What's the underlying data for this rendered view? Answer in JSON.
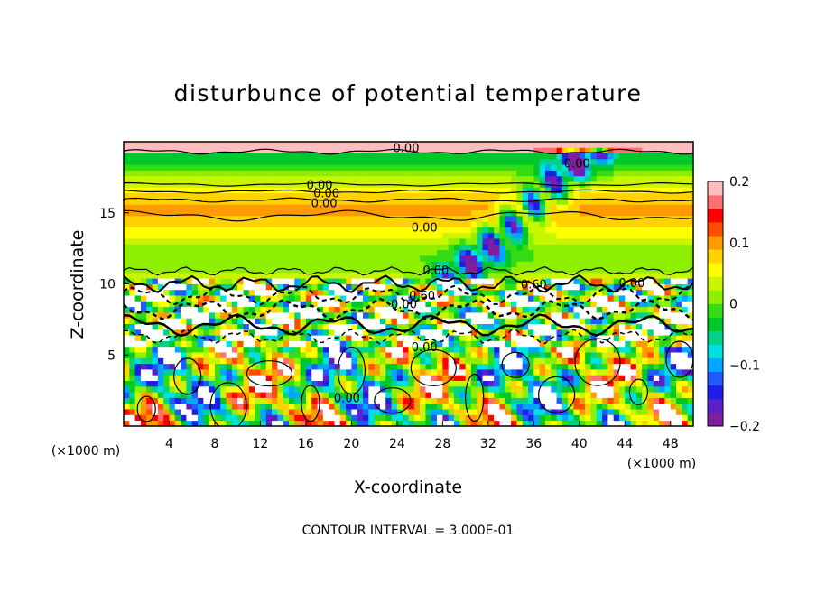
{
  "chart_data": {
    "type": "heatmap",
    "title": "disturbunce of potential temperature",
    "xlabel": "X-coordinate",
    "ylabel": "Z-coordinate",
    "x_unit_left": "(×1000 m)",
    "x_unit_right": "(×1000 m)",
    "x_range": [
      0,
      50
    ],
    "y_range": [
      0,
      20
    ],
    "x_ticks": [
      4,
      8,
      12,
      16,
      20,
      24,
      28,
      32,
      36,
      40,
      44,
      48
    ],
    "y_ticks": [
      5,
      10,
      15
    ],
    "footer": "CONTOUR INTERVAL = 3.000E-01",
    "colorbar": {
      "range": [
        -0.2,
        0.2
      ],
      "tick_values": [
        0.2,
        0.1,
        0,
        -0.1,
        -0.2
      ],
      "tick_labels": [
        "0.2",
        "0.1",
        "0",
        "−0.1",
        "−0.2"
      ],
      "colors": [
        "#7f1fa0",
        "#5b20c8",
        "#1e1ee6",
        "#1f5bff",
        "#00a6ff",
        "#00e0e0",
        "#00d28a",
        "#00c82a",
        "#33dc14",
        "#8ef000",
        "#c8f500",
        "#ffff00",
        "#ffd200",
        "#ff9a00",
        "#ff4d00",
        "#ff0000",
        "#ff6f6f",
        "#ffbdbd"
      ]
    },
    "contour_labels": [
      {
        "x": 24.8,
        "y": 19.6,
        "text": "0.00"
      },
      {
        "x": 17.2,
        "y": 17.0,
        "text": "0.00"
      },
      {
        "x": 17.8,
        "y": 16.4,
        "text": "0.00"
      },
      {
        "x": 17.6,
        "y": 15.7,
        "text": "0.00"
      },
      {
        "x": 26.4,
        "y": 14.0,
        "text": "0.00"
      },
      {
        "x": 27.4,
        "y": 11.0,
        "text": "0.00"
      },
      {
        "x": 24.6,
        "y": 8.6,
        "text": "0.00"
      },
      {
        "x": 26.4,
        "y": 5.6,
        "text": "0.00"
      },
      {
        "x": 36.0,
        "y": 10.0,
        "text": "0.60"
      },
      {
        "x": 26.2,
        "y": 9.2,
        "text": "0.60"
      },
      {
        "x": 44.6,
        "y": 10.1,
        "text": "0.00"
      },
      {
        "x": 19.6,
        "y": 2.0,
        "text": "0.00"
      },
      {
        "x": 39.8,
        "y": 18.5,
        "text": "0.00"
      }
    ]
  }
}
